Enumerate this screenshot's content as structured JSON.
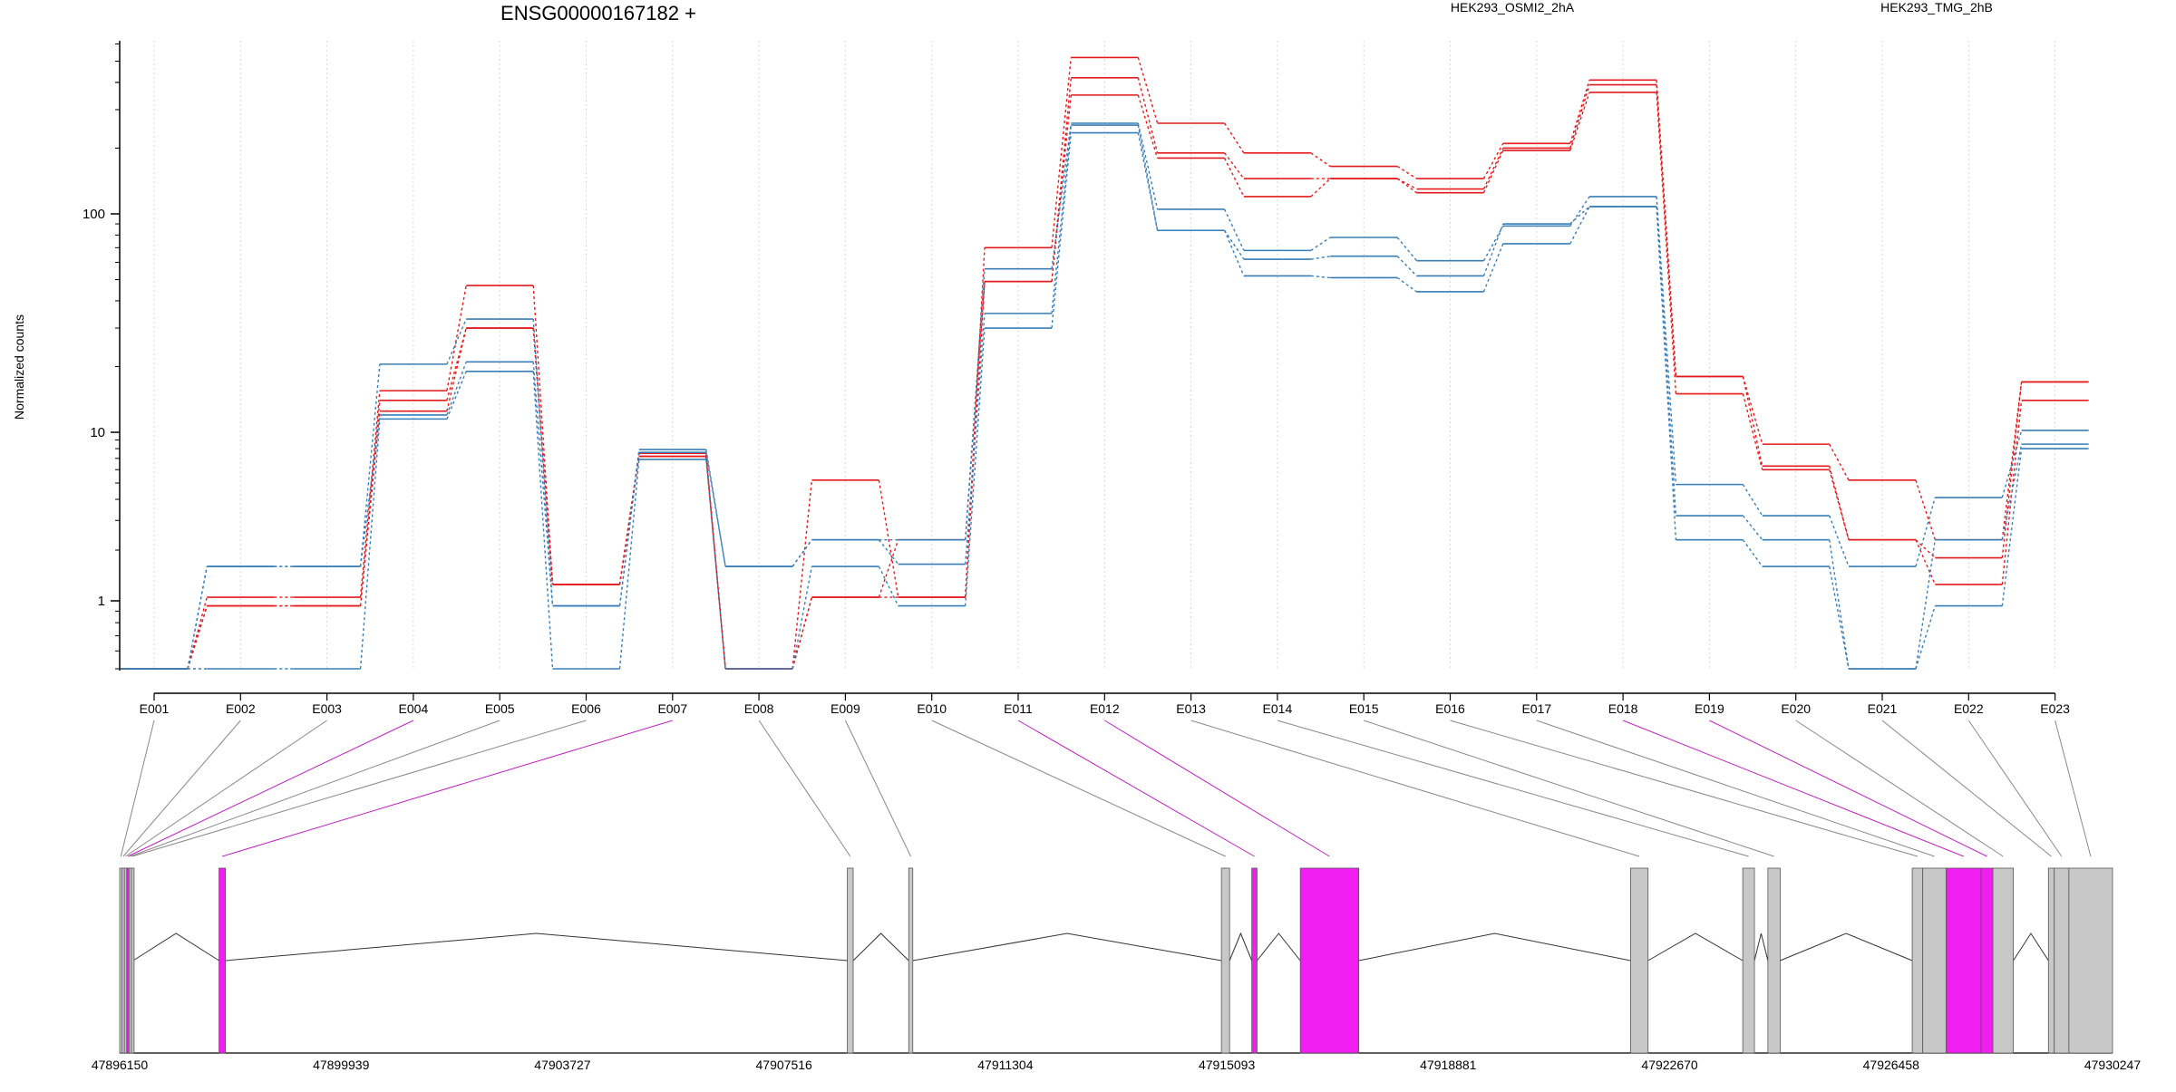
{
  "chart_data": {
    "type": "line",
    "title": "ENSG00000167182 +",
    "ylabel": "Normalized counts",
    "xlabel": "",
    "y_scale": "log",
    "ylim": [
      0.5,
      600
    ],
    "yticks": [
      "1",
      "10",
      "100"
    ],
    "grid": "vertical dotted lines at exon centers",
    "legend_position": "top",
    "categories": [
      "E001",
      "E002",
      "E003",
      "E004",
      "E005",
      "E006",
      "E007",
      "E008",
      "E009",
      "E010",
      "E011",
      "E012",
      "E013",
      "E014",
      "E015",
      "E016",
      "E017",
      "E018",
      "E019",
      "E020",
      "E021",
      "E022",
      "E023"
    ],
    "series_groups": [
      {
        "name": "HEK293_OSMI2_2hA",
        "color": "#e41a1c",
        "lines": [
          [
            0.5,
            1.05,
            1.05,
            15.5,
            47,
            1.25,
            7.5,
            0.5,
            5.2,
            1.05,
            70,
            520,
            260,
            190,
            165,
            145,
            210,
            410,
            18,
            8.5,
            5.2,
            2.3,
            17
          ],
          [
            0.5,
            0.95,
            0.95,
            14,
            30,
            1.25,
            7.2,
            0.5,
            1.05,
            1.05,
            49,
            420,
            190,
            145,
            145,
            130,
            200,
            390,
            18,
            6.3,
            2.3,
            1.8,
            17
          ],
          [
            0.5,
            0.95,
            0.95,
            12.5,
            30,
            1.25,
            7.2,
            0.5,
            1.05,
            2.3,
            49,
            350,
            180,
            120,
            145,
            125,
            195,
            360,
            15,
            6.0,
            2.3,
            1.25,
            14
          ]
        ]
      },
      {
        "name": "HEK293_TMG_2hB",
        "color": "#377eb8",
        "lines": [
          [
            0.5,
            1.6,
            1.6,
            20.5,
            33,
            0.95,
            7.9,
            1.6,
            2.3,
            2.3,
            56,
            260,
            105,
            68,
            78,
            61,
            88,
            120,
            4.9,
            3.2,
            1.6,
            4.1,
            10.2
          ],
          [
            0.5,
            1.6,
            1.6,
            12,
            21,
            0.95,
            7.6,
            1.6,
            2.3,
            1.65,
            35,
            255,
            84,
            62,
            64,
            52,
            90,
            108,
            3.2,
            2.3,
            0.5,
            2.3,
            8.5
          ],
          [
            0.5,
            0.5,
            0.5,
            11.5,
            19,
            0.5,
            6.9,
            0.5,
            1.6,
            0.95,
            30,
            235,
            84,
            52,
            51,
            44,
            73,
            108,
            2.3,
            1.6,
            0.5,
            0.95,
            8.0
          ]
        ]
      }
    ],
    "exon_highlight_color": "#f01ef0",
    "exon_default_color": "#c8c8c8",
    "gene_coordinates": {
      "tick_labels": [
        "47896150",
        "47899939",
        "47903727",
        "47907516",
        "47911304",
        "47915093",
        "47918881",
        "47922670",
        "47926458",
        "47930247"
      ],
      "range": [
        47896150,
        47930247
      ]
    },
    "exons_genomic": [
      {
        "id": "E001",
        "start": 47896150,
        "end": 47896190,
        "highlight": false
      },
      {
        "id": "E002",
        "start": 47896190,
        "end": 47896230,
        "highlight": false
      },
      {
        "id": "E003",
        "start": 47896230,
        "end": 47896270,
        "highlight": false
      },
      {
        "id": "E004",
        "start": 47896270,
        "end": 47896310,
        "highlight": true
      },
      {
        "id": "E005",
        "start": 47896310,
        "end": 47896350,
        "highlight": false
      },
      {
        "id": "E006",
        "start": 47896350,
        "end": 47896380,
        "highlight": false
      },
      {
        "id": "E007",
        "start": 47897850,
        "end": 47897960,
        "highlight": true
      },
      {
        "id": "E008",
        "start": 47908600,
        "end": 47908700,
        "highlight": false
      },
      {
        "id": "E009",
        "start": 47909650,
        "end": 47909720,
        "highlight": false
      },
      {
        "id": "E010",
        "start": 47915000,
        "end": 47915140,
        "highlight": false
      },
      {
        "id": "E011",
        "start": 47915520,
        "end": 47915610,
        "highlight": true
      },
      {
        "id": "E012",
        "start": 47916350,
        "end": 47917350,
        "highlight": true
      },
      {
        "id": "E013",
        "start": 47922000,
        "end": 47922300,
        "highlight": false
      },
      {
        "id": "E014",
        "start": 47923920,
        "end": 47924120,
        "highlight": false
      },
      {
        "id": "E015",
        "start": 47924350,
        "end": 47924560,
        "highlight": false
      },
      {
        "id": "E016",
        "start": 47926820,
        "end": 47927000,
        "highlight": false
      },
      {
        "id": "E017",
        "start": 47927000,
        "end": 47927400,
        "highlight": false
      },
      {
        "id": "E018",
        "start": 47927400,
        "end": 47928000,
        "highlight": true
      },
      {
        "id": "E019",
        "start": 47928000,
        "end": 47928200,
        "highlight": true
      },
      {
        "id": "E020",
        "start": 47928200,
        "end": 47928550,
        "highlight": false
      },
      {
        "id": "E021",
        "start": 47929150,
        "end": 47929250,
        "highlight": false
      },
      {
        "id": "E022",
        "start": 47929250,
        "end": 47929500,
        "highlight": false
      },
      {
        "id": "E023",
        "start": 47929500,
        "end": 47930247,
        "highlight": false
      }
    ]
  }
}
